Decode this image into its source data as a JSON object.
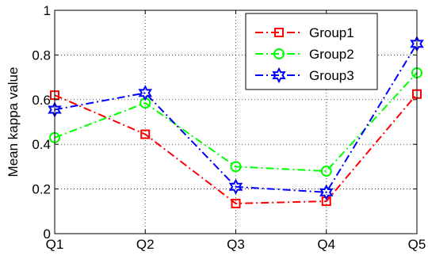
{
  "chart_data": {
    "type": "line",
    "title": "",
    "xlabel": "",
    "ylabel": "Mean kappa value",
    "categories": [
      "Q1",
      "Q2",
      "Q3",
      "Q4",
      "Q5"
    ],
    "ylim": [
      0,
      1
    ],
    "yticks": [
      "0",
      "0.2",
      "0.4",
      "0.6",
      "0.8",
      "1"
    ],
    "grid": true,
    "legend_position": "top-right",
    "series": [
      {
        "name": "Group1",
        "values": [
          0.62,
          0.445,
          0.135,
          0.145,
          0.625
        ],
        "color": "#ff0000",
        "marker": "square"
      },
      {
        "name": "Group2",
        "values": [
          0.43,
          0.585,
          0.3,
          0.28,
          0.72
        ],
        "color": "#00ff00",
        "marker": "circle"
      },
      {
        "name": "Group3",
        "values": [
          0.555,
          0.63,
          0.21,
          0.185,
          0.85
        ],
        "color": "#0000ff",
        "marker": "hexagram"
      }
    ]
  }
}
